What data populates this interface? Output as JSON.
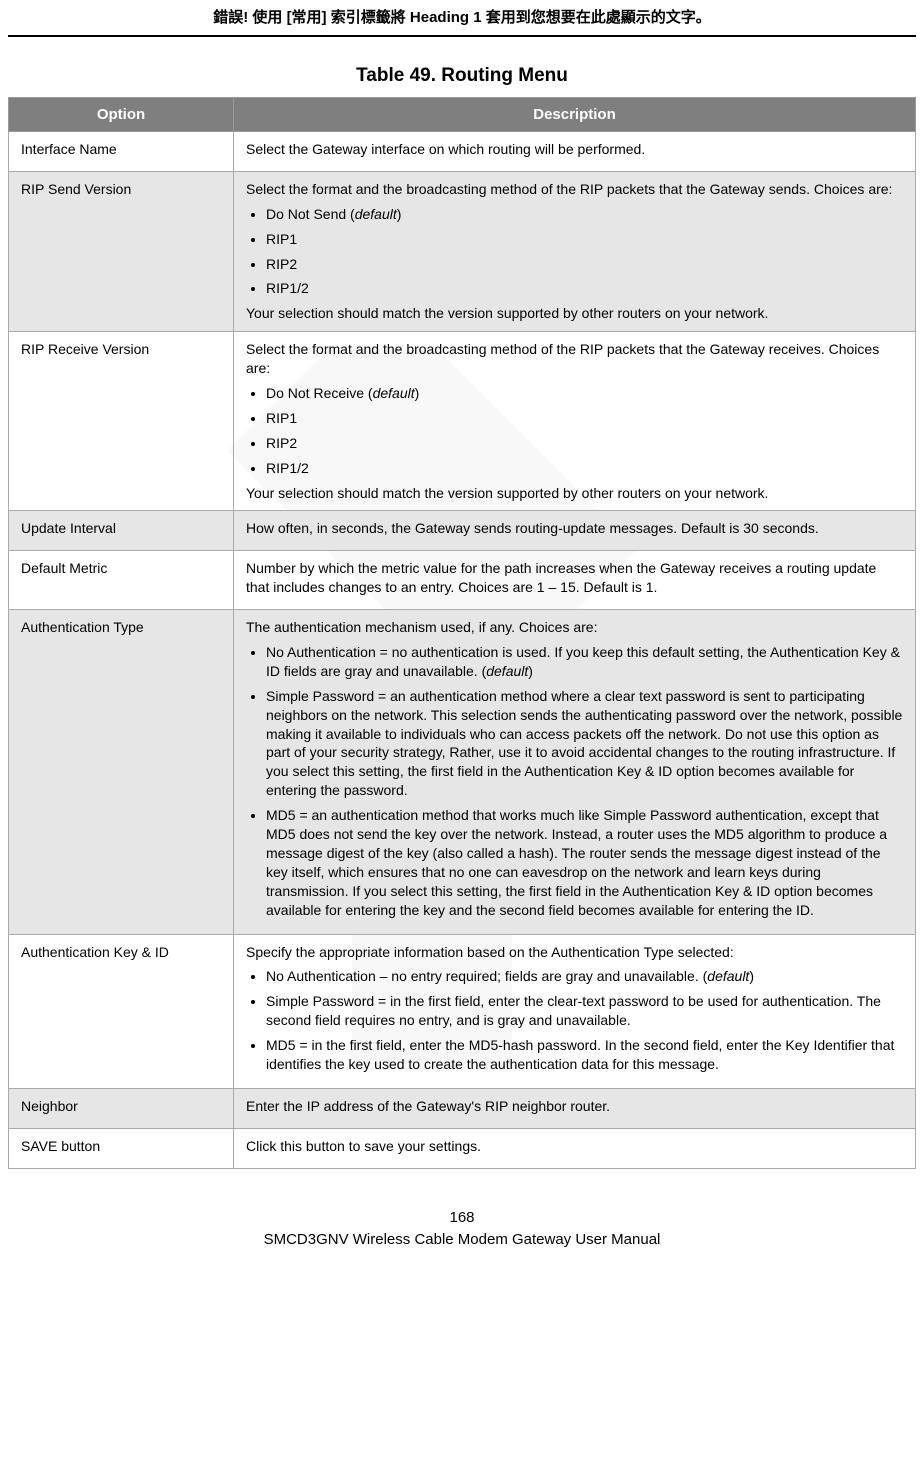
{
  "header_text": "錯誤! 使用 [常用] 索引標籤將 Heading 1 套用到您想要在此處顯示的文字。",
  "table_title": "Table 49. Routing Menu",
  "columns": {
    "option": "Option",
    "description": "Description"
  },
  "rows": [
    {
      "option": "Interface Name",
      "shade": false,
      "intro": "Select the Gateway interface on which routing will be performed."
    },
    {
      "option": "RIP Send Version",
      "shade": true,
      "intro": "Select the format and the broadcasting method of the RIP packets that the Gateway sends. Choices are:",
      "bullets": [
        {
          "prefix": "Do Not Send (",
          "italic": "default",
          "suffix": ")"
        },
        {
          "text": "RIP1"
        },
        {
          "text": "RIP2"
        },
        {
          "text": "RIP1/2"
        }
      ],
      "trail": "Your selection should match the version supported by other routers on your network."
    },
    {
      "option": "RIP Receive Version",
      "shade": false,
      "intro": "Select the format and the broadcasting method of the RIP packets that the Gateway receives. Choices are:",
      "bullets": [
        {
          "prefix": "Do Not Receive (",
          "italic": "default",
          "suffix": ")"
        },
        {
          "text": "RIP1"
        },
        {
          "text": "RIP2"
        },
        {
          "text": "RIP1/2"
        }
      ],
      "trail": "Your selection should match the version supported by other routers on your network."
    },
    {
      "option": "Update Interval",
      "shade": true,
      "intro": "How often, in seconds, the Gateway sends routing-update messages. Default is 30 seconds."
    },
    {
      "option": "Default Metric",
      "shade": false,
      "intro": "Number by which the metric value for the path increases when the Gateway receives a routing update that includes changes to an entry. Choices are 1 – 15. Default is 1."
    },
    {
      "option": "Authentication Type",
      "shade": true,
      "intro": "The authentication mechanism used, if any. Choices are:",
      "bullets": [
        {
          "prefix": "No Authentication = no authentication is used. If you keep this default setting, the Authentication Key & ID fields are gray and unavailable. (",
          "italic": "default",
          "suffix": ")"
        },
        {
          "text": "Simple Password = an authentication method where a clear text password is sent to participating neighbors on the network. This selection sends the authenticating password over the network, possible making it available to individuals who can access packets off the network. Do not use this option as part of your security strategy, Rather, use it to avoid accidental changes to the routing infrastructure. If you select this setting, the first field in the Authentication Key & ID option becomes available for entering the password."
        },
        {
          "text": "MD5 = an authentication method that works much like Simple Password authentication, except that MD5 does not send the key over the network. Instead, a router uses the MD5 algorithm to produce a message digest of the key (also called a hash). The router sends the message digest instead of the key itself, which ensures that no one can eavesdrop on the network and learn keys during transmission. If you select this setting, the first field in the Authentication Key & ID option becomes available for entering the key and the second field becomes available for entering the ID."
        }
      ]
    },
    {
      "option": "Authentication Key & ID",
      "shade": false,
      "intro": "Specify the appropriate information based on the Authentication Type selected:",
      "bullets": [
        {
          "prefix": "No Authentication – no entry required; fields are gray and unavailable. (",
          "italic": "default",
          "suffix": ")"
        },
        {
          "text": "Simple Password = in the first field, enter the clear-text password to be used for authentication. The second field requires no entry, and is gray and unavailable."
        },
        {
          "text": "MD5 = in the first field, enter the MD5-hash password. In the second field, enter the Key Identifier that identifies the key used to create the authentication data for this message."
        }
      ]
    },
    {
      "option": "Neighbor",
      "shade": true,
      "intro": "Enter the IP address of the Gateway's RIP neighbor router."
    },
    {
      "option": "SAVE button",
      "shade": false,
      "intro": "Click this button to save your settings."
    }
  ],
  "footer": {
    "page_number": "168",
    "manual": "SMCD3GNV Wireless Cable Modem Gateway User Manual"
  },
  "styles": {
    "header_bg": "#7f7f7f",
    "header_fg": "#ffffff",
    "shade_bg": "#e6e6e6",
    "border_color": "#aaaaaa",
    "font_sizes": {
      "title": 19,
      "header": 15,
      "body": 14,
      "footer": 15,
      "top_header": 15
    }
  }
}
